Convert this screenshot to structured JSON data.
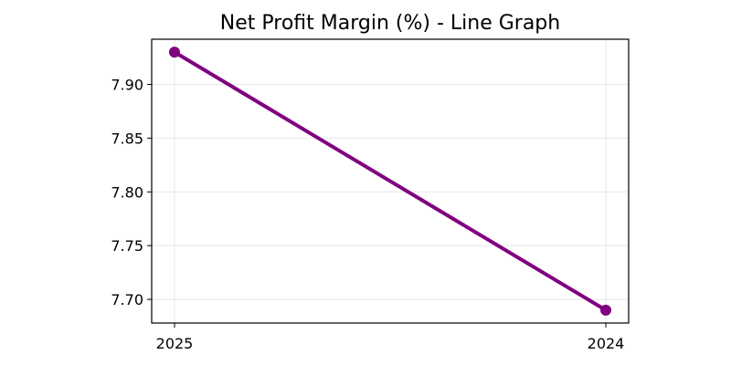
{
  "chart_data": {
    "type": "line",
    "title": "Net Profit Margin (%) - Line Graph",
    "xlabel": "",
    "ylabel": "",
    "categories": [
      "2025",
      "2024"
    ],
    "series": [
      {
        "values": [
          7.93,
          7.69
        ],
        "color": "#800080",
        "marker": "circle"
      }
    ],
    "ylim": [
      7.678,
      7.942
    ],
    "yticks": [
      7.7,
      7.75,
      7.8,
      7.85,
      7.9
    ],
    "ytick_labels": [
      "7.70",
      "7.75",
      "7.80",
      "7.85",
      "7.90"
    ],
    "grid": true,
    "legend": "none"
  }
}
